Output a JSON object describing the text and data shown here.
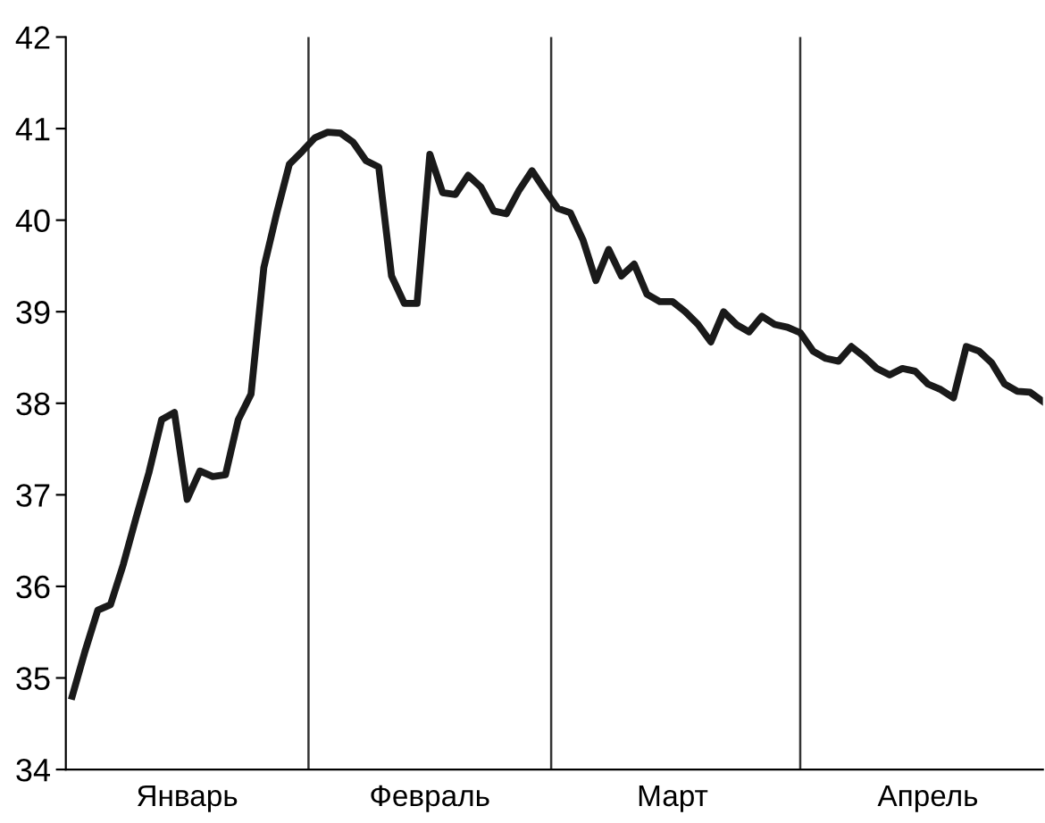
{
  "chart_data": {
    "type": "line",
    "categories": [
      null,
      null,
      null,
      null,
      null,
      null,
      null,
      null,
      null,
      "Январь",
      null,
      null,
      null,
      null,
      null,
      null,
      null,
      null,
      null,
      null,
      null,
      null,
      null,
      null,
      null,
      null,
      null,
      null,
      "Февраль",
      null,
      null,
      null,
      null,
      null,
      null,
      null,
      null,
      null,
      null,
      null,
      null,
      null,
      null,
      null,
      null,
      null,
      null,
      "Март",
      null,
      null,
      null,
      null,
      null,
      null,
      null,
      null,
      null,
      null,
      null,
      null,
      null,
      null,
      null,
      null,
      null,
      null,
      null,
      "Апрель",
      null,
      null,
      null,
      null,
      null,
      null,
      null,
      null,
      null
    ],
    "series": [
      {
        "color": "#1a1a1a",
        "values": [
          34.8,
          35.29,
          35.74,
          35.8,
          36.24,
          36.75,
          37.24,
          37.82,
          37.9,
          36.95,
          37.26,
          37.2,
          37.22,
          37.82,
          38.1,
          39.48,
          40.07,
          40.61,
          40.75,
          40.9,
          40.96,
          40.95,
          40.85,
          40.65,
          40.58,
          39.39,
          39.09,
          39.09,
          40.72,
          40.3,
          40.28,
          40.49,
          40.36,
          40.1,
          40.07,
          40.33,
          40.54,
          40.33,
          40.13,
          40.08,
          39.78,
          39.34,
          39.68,
          39.39,
          39.52,
          39.19,
          39.11,
          39.11,
          39.0,
          38.86,
          38.67,
          39.0,
          38.86,
          38.78,
          38.95,
          38.86,
          38.83,
          38.77,
          38.57,
          38.49,
          38.46,
          38.62,
          38.51,
          38.38,
          38.31,
          38.38,
          38.35,
          38.21,
          38.15,
          38.06,
          38.62,
          38.57,
          38.44,
          38.21,
          38.13,
          38.12,
          38.02
        ]
      }
    ],
    "ylim": [
      34,
      42
    ],
    "yticks": [
      34,
      35,
      36,
      37,
      38,
      39,
      40,
      41,
      42
    ],
    "grid": false,
    "marker": "none",
    "line_style": "solid"
  }
}
